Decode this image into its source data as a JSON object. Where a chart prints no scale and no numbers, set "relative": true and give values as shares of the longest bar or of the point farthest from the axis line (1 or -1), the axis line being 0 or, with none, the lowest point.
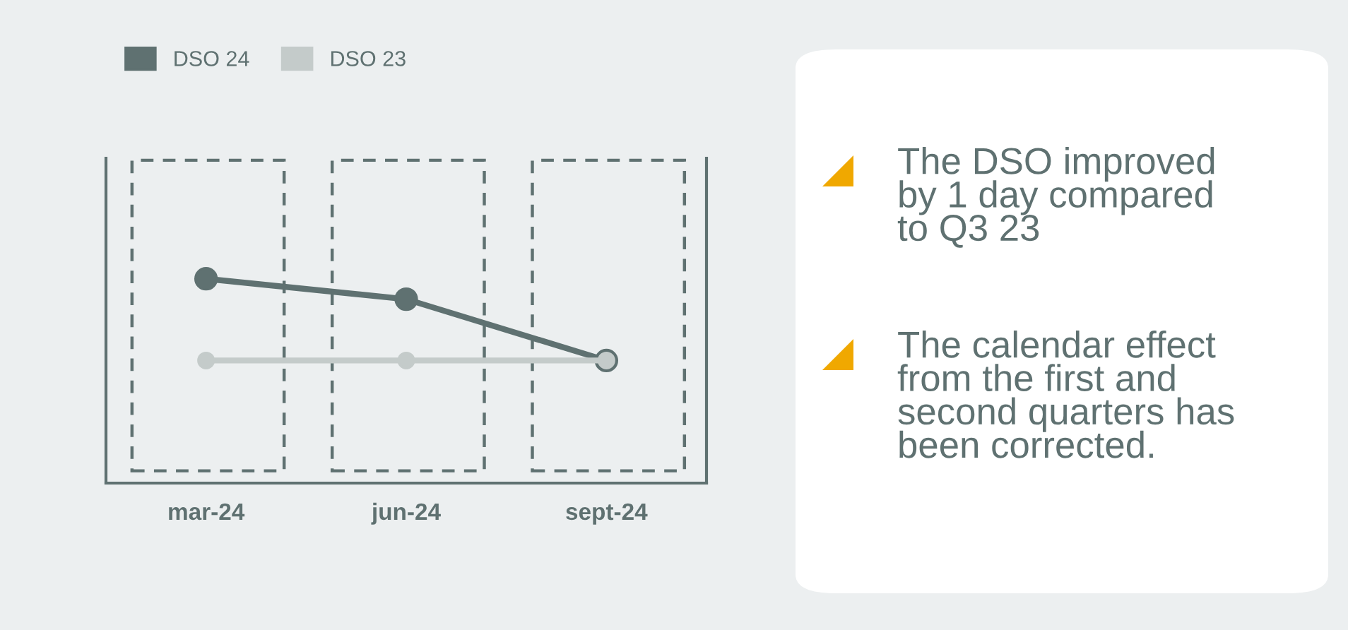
{
  "chart_data": {
    "type": "line",
    "relative": true,
    "categories": [
      "mar-24",
      "jun-24",
      "sept-24"
    ],
    "series": [
      {
        "name": "DSO 24",
        "color": "#5f7171",
        "values": [
          1,
          0.9,
          0.6
        ]
      },
      {
        "name": "DSO 23",
        "color": "#c4cbca",
        "values": [
          0.6,
          0.6,
          0.6
        ]
      }
    ],
    "marker": "circle",
    "legend": "top left",
    "grid": false,
    "annotations": [
      "The DSO improved\nby 1 day compared\nto Q3 23",
      "The calendar effect\nfrom the first and\nsecond quarters has\nbeen corrected."
    ]
  }
}
